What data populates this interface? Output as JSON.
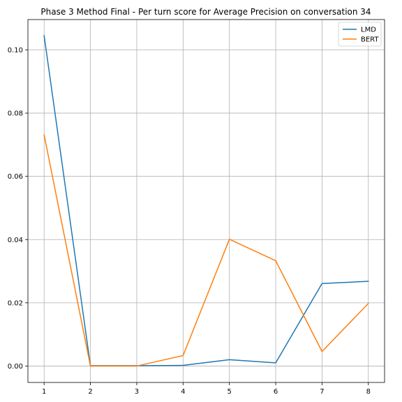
{
  "chart_data": {
    "type": "line",
    "title": "Phase 3 Method Final - Per turn score for Average Precision on conversation 34",
    "xlabel": "",
    "ylabel": "",
    "x": [
      1,
      2,
      3,
      4,
      5,
      6,
      7,
      8
    ],
    "xticks": [
      "1",
      "2",
      "3",
      "4",
      "5",
      "6",
      "7",
      "8"
    ],
    "yticks": [
      0.0,
      0.02,
      0.04,
      0.06,
      0.08,
      0.1
    ],
    "ytick_labels": [
      "0.00",
      "0.02",
      "0.04",
      "0.06",
      "0.08",
      "0.10"
    ],
    "xlim": [
      0.65,
      8.35
    ],
    "ylim": [
      -0.0052,
      0.1096
    ],
    "grid": true,
    "legend_position": "top-right",
    "series": [
      {
        "name": "LMD",
        "color": "#1f77b4",
        "values": [
          0.1045,
          0.0001,
          0.0001,
          0.0002,
          0.002,
          0.001,
          0.0261,
          0.0268
        ]
      },
      {
        "name": "BERT",
        "color": "#ff7f0e",
        "values": [
          0.0731,
          0.0,
          0.0,
          0.0033,
          0.0401,
          0.0333,
          0.0046,
          0.0198
        ]
      }
    ]
  }
}
